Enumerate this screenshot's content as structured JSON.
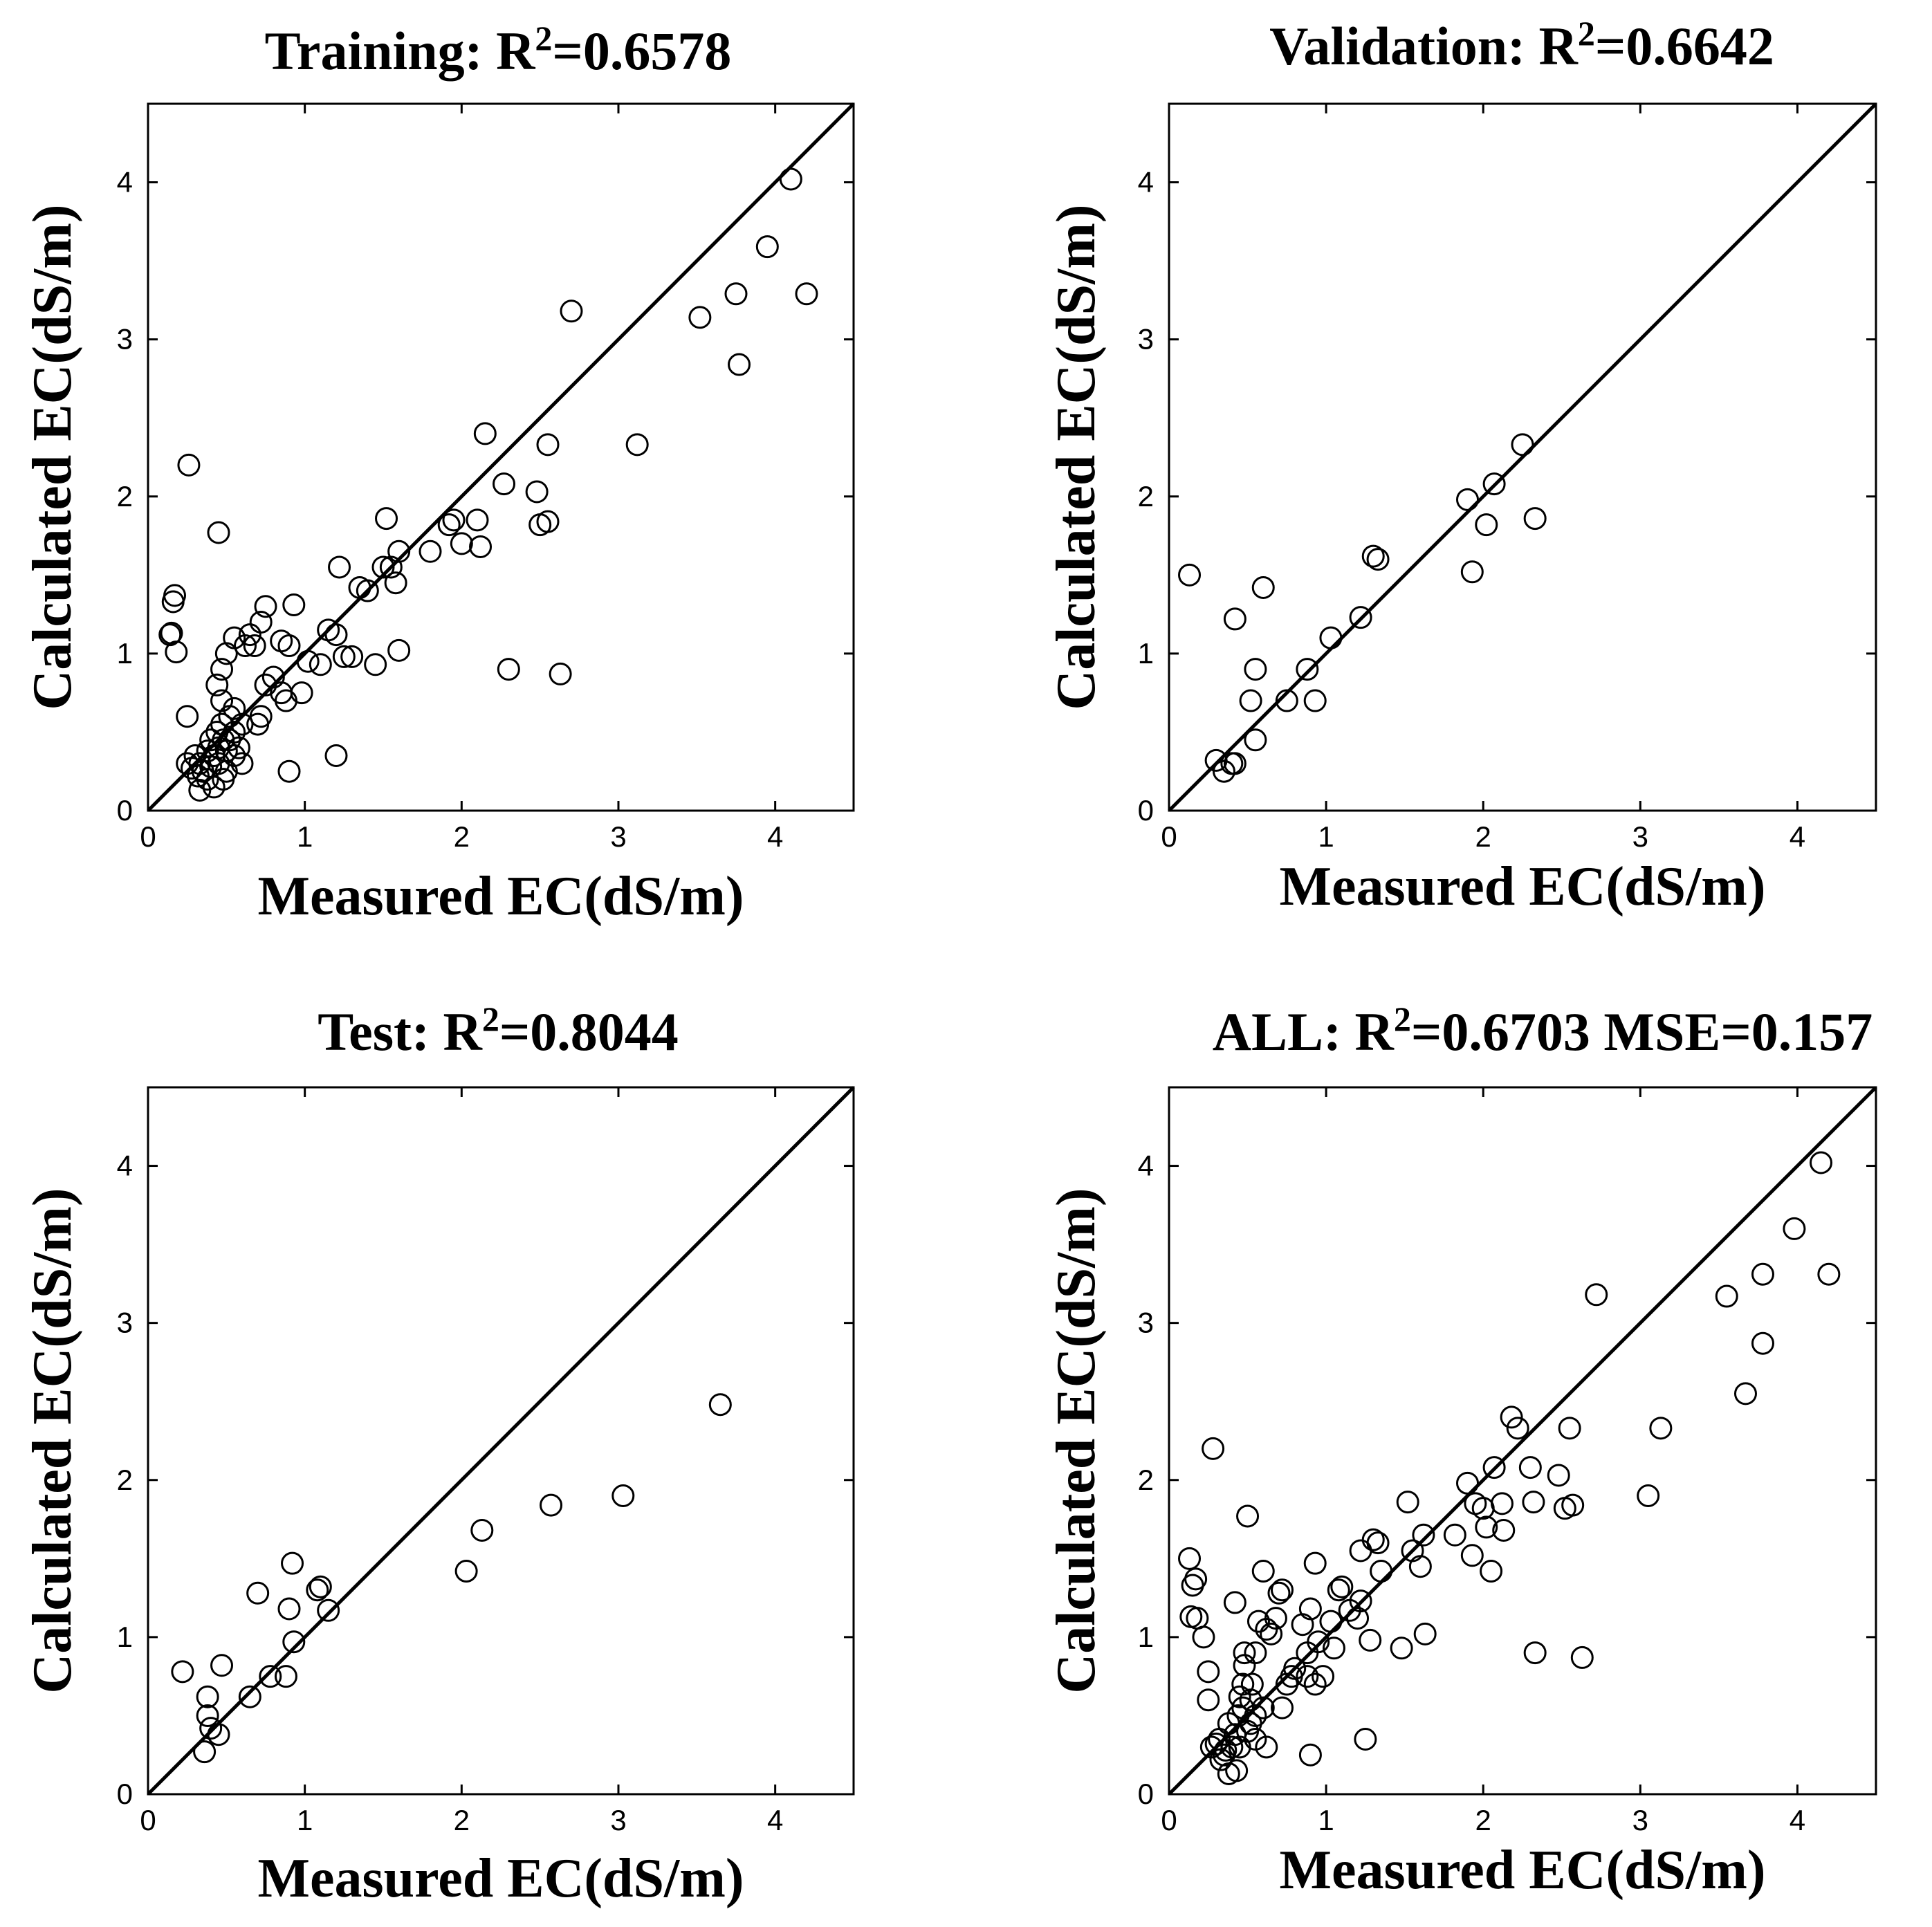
{
  "chart_data": [
    {
      "type": "scatter",
      "title_prefix": "Training: R",
      "title_sup": "2",
      "title_suffix": "=0.6578",
      "xlabel": "Measured EC(dS/m)",
      "ylabel": "Calculated EC(dS/m)",
      "xlim": [
        0,
        4.5
      ],
      "ylim": [
        0,
        4.5
      ],
      "xticks": [
        0,
        1,
        2,
        3,
        4
      ],
      "yticks": [
        0,
        1,
        2,
        3,
        4
      ],
      "reference_line": "y = x",
      "points": [
        [
          0.15,
          1.13
        ],
        [
          0.14,
          1.12
        ],
        [
          0.16,
          1.33
        ],
        [
          0.17,
          1.37
        ],
        [
          0.18,
          1.01
        ],
        [
          0.26,
          2.2
        ],
        [
          0.25,
          0.6
        ],
        [
          0.25,
          0.3
        ],
        [
          0.28,
          0.27
        ],
        [
          0.3,
          0.35
        ],
        [
          0.32,
          0.22
        ],
        [
          0.33,
          0.3
        ],
        [
          0.35,
          0.25
        ],
        [
          0.33,
          0.13
        ],
        [
          0.38,
          0.38
        ],
        [
          0.38,
          0.2
        ],
        [
          0.4,
          0.28
        ],
        [
          0.4,
          0.45
        ],
        [
          0.42,
          0.35
        ],
        [
          0.42,
          0.15
        ],
        [
          0.44,
          0.5
        ],
        [
          0.45,
          0.3
        ],
        [
          0.45,
          0.4
        ],
        [
          0.47,
          0.7
        ],
        [
          0.47,
          0.55
        ],
        [
          0.48,
          0.45
        ],
        [
          0.5,
          0.38
        ],
        [
          0.5,
          0.25
        ],
        [
          0.52,
          0.6
        ],
        [
          0.52,
          0.45
        ],
        [
          0.55,
          0.5
        ],
        [
          0.55,
          0.35
        ],
        [
          0.58,
          0.4
        ],
        [
          0.6,
          0.3
        ],
        [
          0.48,
          0.2
        ],
        [
          0.44,
          0.8
        ],
        [
          0.47,
          0.9
        ],
        [
          0.5,
          1.0
        ],
        [
          0.45,
          1.77
        ],
        [
          0.55,
          0.65
        ],
        [
          0.6,
          0.55
        ],
        [
          0.62,
          1.05
        ],
        [
          0.55,
          1.1
        ],
        [
          0.65,
          1.12
        ],
        [
          0.68,
          1.05
        ],
        [
          0.72,
          1.2
        ],
        [
          0.75,
          1.3
        ],
        [
          0.7,
          0.55
        ],
        [
          0.72,
          0.6
        ],
        [
          0.75,
          0.8
        ],
        [
          0.8,
          0.85
        ],
        [
          0.85,
          0.75
        ],
        [
          0.88,
          0.7
        ],
        [
          0.85,
          1.08
        ],
        [
          0.9,
          1.05
        ],
        [
          0.93,
          1.31
        ],
        [
          0.9,
          0.25
        ],
        [
          0.98,
          0.75
        ],
        [
          1.02,
          0.95
        ],
        [
          1.1,
          0.93
        ],
        [
          1.15,
          1.15
        ],
        [
          1.2,
          1.12
        ],
        [
          1.22,
          1.55
        ],
        [
          1.2,
          0.35
        ],
        [
          1.25,
          0.98
        ],
        [
          1.3,
          0.98
        ],
        [
          1.35,
          1.42
        ],
        [
          1.4,
          1.4
        ],
        [
          1.45,
          0.93
        ],
        [
          1.5,
          1.55
        ],
        [
          1.52,
          1.86
        ],
        [
          1.55,
          1.55
        ],
        [
          1.58,
          1.45
        ],
        [
          1.6,
          1.65
        ],
        [
          1.6,
          1.02
        ],
        [
          1.8,
          1.65
        ],
        [
          1.92,
          1.82
        ],
        [
          1.95,
          1.85
        ],
        [
          2.0,
          1.7
        ],
        [
          2.1,
          1.85
        ],
        [
          2.12,
          1.68
        ],
        [
          2.15,
          2.4
        ],
        [
          2.27,
          2.08
        ],
        [
          2.3,
          0.9
        ],
        [
          2.48,
          2.03
        ],
        [
          2.5,
          1.82
        ],
        [
          2.55,
          2.33
        ],
        [
          2.55,
          1.84
        ],
        [
          2.63,
          0.87
        ],
        [
          2.7,
          3.18
        ],
        [
          3.12,
          2.33
        ],
        [
          3.52,
          3.14
        ],
        [
          3.75,
          3.29
        ],
        [
          3.77,
          2.84
        ],
        [
          3.95,
          3.59
        ],
        [
          4.1,
          4.02
        ],
        [
          4.2,
          3.29
        ]
      ]
    },
    {
      "type": "scatter",
      "title_prefix": "Validation: R",
      "title_sup": "2",
      "title_suffix": "=0.6642",
      "xlabel": "Measured EC(dS/m)",
      "ylabel": "Calculated EC(dS/m)",
      "xlim": [
        0,
        4.5
      ],
      "ylim": [
        0,
        4.5
      ],
      "xticks": [
        0,
        1,
        2,
        3,
        4
      ],
      "yticks": [
        0,
        1,
        2,
        3,
        4
      ],
      "reference_line": "y = x",
      "points": [
        [
          0.13,
          1.5
        ],
        [
          0.3,
          0.32
        ],
        [
          0.35,
          0.25
        ],
        [
          0.4,
          0.3
        ],
        [
          0.42,
          0.3
        ],
        [
          0.42,
          1.22
        ],
        [
          0.52,
          0.7
        ],
        [
          0.55,
          0.45
        ],
        [
          0.55,
          0.9
        ],
        [
          0.6,
          1.42
        ],
        [
          0.75,
          0.7
        ],
        [
          0.88,
          0.9
        ],
        [
          0.93,
          0.7
        ],
        [
          1.03,
          1.1
        ],
        [
          1.22,
          1.23
        ],
        [
          1.3,
          1.62
        ],
        [
          1.33,
          1.6
        ],
        [
          1.9,
          1.98
        ],
        [
          1.93,
          1.52
        ],
        [
          2.02,
          1.82
        ],
        [
          2.07,
          2.08
        ],
        [
          2.25,
          2.33
        ],
        [
          2.33,
          1.86
        ]
      ]
    },
    {
      "type": "scatter",
      "title_prefix": "Test: R",
      "title_sup": "2",
      "title_suffix": "=0.8044",
      "xlabel": "Measured EC(dS/m)",
      "ylabel": "Calculated EC(dS/m)",
      "xlim": [
        0,
        4.5
      ],
      "ylim": [
        0,
        4.5
      ],
      "xticks": [
        0,
        1,
        2,
        3,
        4
      ],
      "yticks": [
        0,
        1,
        2,
        3,
        4
      ],
      "reference_line": "y = x",
      "points": [
        [
          0.22,
          0.78
        ],
        [
          0.36,
          0.27
        ],
        [
          0.38,
          0.62
        ],
        [
          0.38,
          0.5
        ],
        [
          0.4,
          0.42
        ],
        [
          0.45,
          0.38
        ],
        [
          0.47,
          0.82
        ],
        [
          0.65,
          0.62
        ],
        [
          0.7,
          1.28
        ],
        [
          0.78,
          0.75
        ],
        [
          0.88,
          0.75
        ],
        [
          0.9,
          1.18
        ],
        [
          0.92,
          1.47
        ],
        [
          0.93,
          0.97
        ],
        [
          1.08,
          1.3
        ],
        [
          1.1,
          1.32
        ],
        [
          1.15,
          1.17
        ],
        [
          2.03,
          1.42
        ],
        [
          2.13,
          1.68
        ],
        [
          2.57,
          1.84
        ],
        [
          3.03,
          1.9
        ],
        [
          3.65,
          2.48
        ]
      ]
    },
    {
      "type": "scatter",
      "title_prefix": "ALL: R",
      "title_sup": "2",
      "title_suffix": "=0.6703 MSE=0.157",
      "xlabel": "Measured EC(dS/m)",
      "ylabel": "Calculated EC(dS/m)",
      "xlim": [
        0,
        4.5
      ],
      "ylim": [
        0,
        4.5
      ],
      "xticks": [
        0,
        1,
        2,
        3,
        4
      ],
      "yticks": [
        0,
        1,
        2,
        3,
        4
      ],
      "reference_line": "y = x",
      "points": [
        [
          0.13,
          1.5
        ],
        [
          0.14,
          1.13
        ],
        [
          0.15,
          1.33
        ],
        [
          0.17,
          1.37
        ],
        [
          0.18,
          1.12
        ],
        [
          0.22,
          1.0
        ],
        [
          0.25,
          0.78
        ],
        [
          0.25,
          0.6
        ],
        [
          0.28,
          2.2
        ],
        [
          0.27,
          0.3
        ],
        [
          0.3,
          0.32
        ],
        [
          0.32,
          0.35
        ],
        [
          0.33,
          0.22
        ],
        [
          0.35,
          0.25
        ],
        [
          0.36,
          0.28
        ],
        [
          0.38,
          0.45
        ],
        [
          0.38,
          0.13
        ],
        [
          0.4,
          0.3
        ],
        [
          0.42,
          0.38
        ],
        [
          0.42,
          1.22
        ],
        [
          0.43,
          0.15
        ],
        [
          0.44,
          0.5
        ],
        [
          0.45,
          0.3
        ],
        [
          0.45,
          0.62
        ],
        [
          0.47,
          0.7
        ],
        [
          0.47,
          0.55
        ],
        [
          0.48,
          0.82
        ],
        [
          0.48,
          0.9
        ],
        [
          0.5,
          0.4
        ],
        [
          0.5,
          1.77
        ],
        [
          0.52,
          0.6
        ],
        [
          0.52,
          0.45
        ],
        [
          0.53,
          0.7
        ],
        [
          0.55,
          0.5
        ],
        [
          0.55,
          0.35
        ],
        [
          0.55,
          0.9
        ],
        [
          0.57,
          1.1
        ],
        [
          0.6,
          1.42
        ],
        [
          0.6,
          0.55
        ],
        [
          0.62,
          1.05
        ],
        [
          0.62,
          0.3
        ],
        [
          0.65,
          1.02
        ],
        [
          0.68,
          1.12
        ],
        [
          0.7,
          1.28
        ],
        [
          0.72,
          1.3
        ],
        [
          0.72,
          0.55
        ],
        [
          0.75,
          0.7
        ],
        [
          0.78,
          0.75
        ],
        [
          0.8,
          0.8
        ],
        [
          0.85,
          1.08
        ],
        [
          0.88,
          0.75
        ],
        [
          0.88,
          0.9
        ],
        [
          0.9,
          0.25
        ],
        [
          0.9,
          1.18
        ],
        [
          0.93,
          1.47
        ],
        [
          0.93,
          0.7
        ],
        [
          0.95,
          0.97
        ],
        [
          0.98,
          0.75
        ],
        [
          1.03,
          1.1
        ],
        [
          1.05,
          0.93
        ],
        [
          1.08,
          1.3
        ],
        [
          1.1,
          1.32
        ],
        [
          1.15,
          1.17
        ],
        [
          1.2,
          1.12
        ],
        [
          1.22,
          1.55
        ],
        [
          1.22,
          1.23
        ],
        [
          1.25,
          0.35
        ],
        [
          1.28,
          0.98
        ],
        [
          1.3,
          1.62
        ],
        [
          1.33,
          1.6
        ],
        [
          1.35,
          1.42
        ],
        [
          1.48,
          0.93
        ],
        [
          1.52,
          1.86
        ],
        [
          1.55,
          1.55
        ],
        [
          1.6,
          1.45
        ],
        [
          1.62,
          1.65
        ],
        [
          1.63,
          1.02
        ],
        [
          1.82,
          1.65
        ],
        [
          1.9,
          1.98
        ],
        [
          1.93,
          1.52
        ],
        [
          1.95,
          1.85
        ],
        [
          2.0,
          1.82
        ],
        [
          2.02,
          1.7
        ],
        [
          2.05,
          1.42
        ],
        [
          2.07,
          2.08
        ],
        [
          2.12,
          1.85
        ],
        [
          2.13,
          1.68
        ],
        [
          2.18,
          2.4
        ],
        [
          2.22,
          2.33
        ],
        [
          2.3,
          2.08
        ],
        [
          2.32,
          1.86
        ],
        [
          2.33,
          0.9
        ],
        [
          2.48,
          2.03
        ],
        [
          2.52,
          1.82
        ],
        [
          2.55,
          2.33
        ],
        [
          2.57,
          1.84
        ],
        [
          2.63,
          0.87
        ],
        [
          2.72,
          3.18
        ],
        [
          3.05,
          1.9
        ],
        [
          3.13,
          2.33
        ],
        [
          3.55,
          3.17
        ],
        [
          3.67,
          2.55
        ],
        [
          3.78,
          3.31
        ],
        [
          3.78,
          2.87
        ],
        [
          3.98,
          3.6
        ],
        [
          4.15,
          4.02
        ],
        [
          4.2,
          3.31
        ]
      ]
    }
  ]
}
